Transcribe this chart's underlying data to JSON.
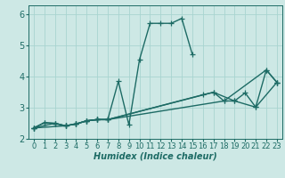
{
  "title": "",
  "xlabel": "Humidex (Indice chaleur)",
  "ylabel": "",
  "bg_color": "#cde8e5",
  "line_color": "#1d6b65",
  "grid_color": "#a8d4d0",
  "xlim": [
    -0.5,
    23.5
  ],
  "ylim": [
    2.0,
    6.3
  ],
  "xticks": [
    0,
    1,
    2,
    3,
    4,
    5,
    6,
    7,
    8,
    9,
    10,
    11,
    12,
    13,
    14,
    15,
    16,
    17,
    18,
    19,
    20,
    21,
    22,
    23
  ],
  "yticks": [
    2,
    3,
    4,
    5,
    6
  ],
  "series": [
    {
      "x": [
        0,
        1,
        2,
        3,
        4,
        5,
        6,
        7,
        8,
        9,
        10,
        11,
        12,
        13,
        14,
        15
      ],
      "y": [
        2.35,
        2.52,
        2.5,
        2.42,
        2.48,
        2.58,
        2.62,
        2.62,
        3.85,
        2.45,
        4.55,
        5.72,
        5.72,
        5.72,
        5.88,
        4.72
      ]
    },
    {
      "x": [
        0,
        1,
        2,
        3,
        4,
        5,
        6,
        7,
        16,
        17,
        19,
        20,
        21,
        22,
        23
      ],
      "y": [
        2.35,
        2.52,
        2.5,
        2.42,
        2.48,
        2.58,
        2.62,
        2.62,
        3.42,
        3.5,
        3.22,
        3.48,
        3.02,
        4.22,
        3.82
      ]
    },
    {
      "x": [
        0,
        2,
        3,
        4,
        5,
        6,
        7,
        17,
        18,
        19,
        21,
        23
      ],
      "y": [
        2.35,
        2.5,
        2.42,
        2.48,
        2.58,
        2.62,
        2.62,
        3.5,
        3.22,
        3.22,
        3.02,
        3.82
      ]
    },
    {
      "x": [
        0,
        3,
        4,
        5,
        6,
        7,
        18,
        22,
        23
      ],
      "y": [
        2.35,
        2.42,
        2.48,
        2.58,
        2.62,
        2.62,
        3.22,
        4.22,
        3.82
      ]
    }
  ],
  "marker": "+",
  "markersize": 4,
  "linewidth": 1.0,
  "fontsize_label": 7,
  "fontsize_tick": 6
}
